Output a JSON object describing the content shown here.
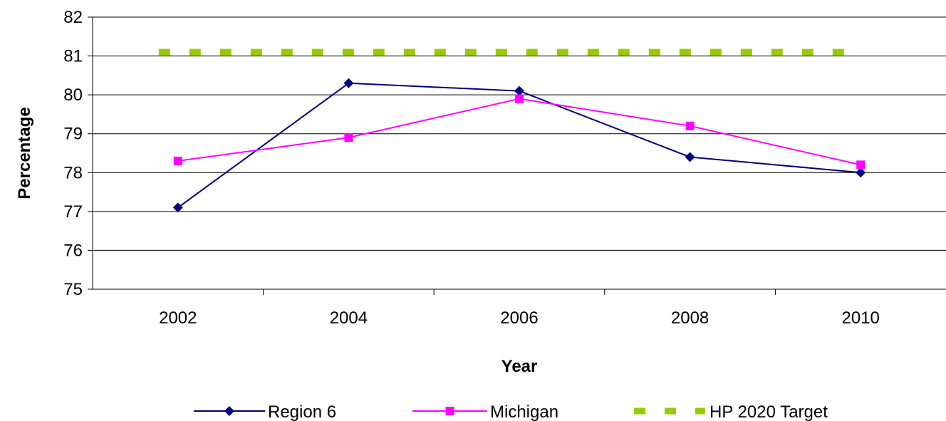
{
  "chart_data": {
    "type": "line",
    "title": "",
    "xlabel": "Year",
    "ylabel": "Percentage",
    "categories": [
      "2002",
      "2004",
      "2006",
      "2008",
      "2010"
    ],
    "ylim": [
      75,
      82
    ],
    "yticks": [
      "75",
      "76",
      "77",
      "78",
      "79",
      "80",
      "81",
      "82"
    ],
    "grid": true,
    "legend_position": "bottom",
    "series": [
      {
        "name": "Region 6",
        "values": [
          77.1,
          80.3,
          80.1,
          78.4,
          78.0
        ],
        "color": "#000080",
        "marker": "diamond",
        "style": "solid"
      },
      {
        "name": "Michigan",
        "values": [
          78.3,
          78.9,
          79.9,
          79.2,
          78.2
        ],
        "color": "#FF00FF",
        "marker": "square",
        "style": "solid"
      },
      {
        "name": "HP 2020 Target",
        "values": [
          81.1,
          81.1,
          81.1,
          81.1,
          81.1
        ],
        "color": "#99CC00",
        "marker": "none",
        "style": "dashed"
      }
    ]
  }
}
